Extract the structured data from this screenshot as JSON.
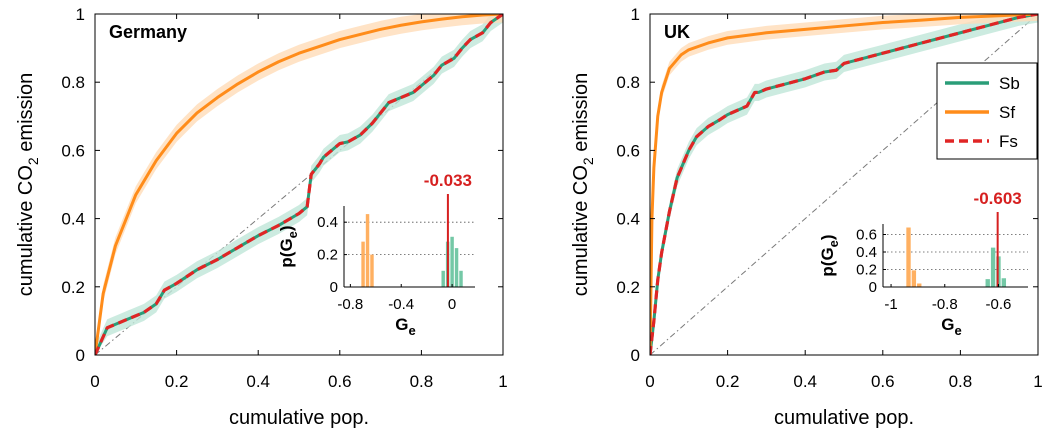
{
  "colors": {
    "Sb": "#2a9d78",
    "Sb_band": "#bfe6d8",
    "Sf": "#ff8c1a",
    "Sf_band": "#ffdcb8",
    "Fs": "#e02525",
    "diag": "#7a7a7a",
    "inset_gini": "#d62020"
  },
  "chart_data": [
    {
      "type": "line",
      "panel_label": "Germany",
      "xlabel": "cumulative pop.",
      "ylabel_main": "cumulative CO",
      "ylabel_sub": "2",
      "ylabel_tail": " emission",
      "xlim": [
        0,
        1
      ],
      "ylim": [
        0,
        1
      ],
      "xticks": [
        "0",
        "0.2",
        "0.4",
        "0.6",
        "0.8",
        "1"
      ],
      "yticks": [
        "0",
        "0.2",
        "0.4",
        "0.6",
        "0.8",
        "1"
      ],
      "grid": false,
      "series": [
        {
          "name": "Sb",
          "x": [
            0,
            0.03,
            0.06,
            0.09,
            0.12,
            0.15,
            0.17,
            0.2,
            0.25,
            0.3,
            0.35,
            0.4,
            0.45,
            0.5,
            0.52,
            0.53,
            0.55,
            0.56,
            0.58,
            0.6,
            0.62,
            0.65,
            0.68,
            0.7,
            0.72,
            0.75,
            0.78,
            0.8,
            0.83,
            0.85,
            0.88,
            0.9,
            0.92,
            0.95,
            0.97,
            1.0
          ],
          "y": [
            0,
            0.08,
            0.095,
            0.11,
            0.125,
            0.15,
            0.19,
            0.21,
            0.25,
            0.28,
            0.315,
            0.35,
            0.38,
            0.415,
            0.435,
            0.53,
            0.56,
            0.58,
            0.6,
            0.62,
            0.625,
            0.645,
            0.68,
            0.71,
            0.74,
            0.755,
            0.77,
            0.79,
            0.82,
            0.85,
            0.87,
            0.9,
            0.925,
            0.945,
            0.975,
            1.0
          ],
          "band": 0.025
        },
        {
          "name": "Sf",
          "x": [
            0,
            0.02,
            0.05,
            0.1,
            0.15,
            0.2,
            0.25,
            0.3,
            0.35,
            0.4,
            0.45,
            0.5,
            0.55,
            0.6,
            0.65,
            0.7,
            0.75,
            0.8,
            0.85,
            0.9,
            0.95,
            1.0
          ],
          "y": [
            0,
            0.18,
            0.32,
            0.47,
            0.57,
            0.65,
            0.71,
            0.755,
            0.795,
            0.83,
            0.86,
            0.885,
            0.905,
            0.925,
            0.94,
            0.955,
            0.967,
            0.977,
            0.985,
            0.992,
            0.997,
            1.0
          ],
          "band": 0.025
        },
        {
          "name": "Fs",
          "x": [
            0,
            0.03,
            0.06,
            0.09,
            0.12,
            0.15,
            0.17,
            0.2,
            0.25,
            0.3,
            0.35,
            0.4,
            0.45,
            0.5,
            0.52,
            0.53,
            0.55,
            0.56,
            0.58,
            0.6,
            0.62,
            0.65,
            0.68,
            0.7,
            0.72,
            0.75,
            0.78,
            0.8,
            0.83,
            0.85,
            0.88,
            0.9,
            0.92,
            0.95,
            0.97,
            1.0
          ],
          "y": [
            0,
            0.08,
            0.095,
            0.11,
            0.125,
            0.15,
            0.19,
            0.21,
            0.25,
            0.28,
            0.315,
            0.35,
            0.38,
            0.415,
            0.435,
            0.53,
            0.56,
            0.58,
            0.6,
            0.62,
            0.625,
            0.645,
            0.68,
            0.71,
            0.74,
            0.755,
            0.77,
            0.79,
            0.82,
            0.85,
            0.87,
            0.9,
            0.925,
            0.945,
            0.975,
            1.0
          ]
        }
      ],
      "inset": {
        "type": "bar",
        "xlabel": "G",
        "xlabel_sub": "e",
        "ylabel": "p(G",
        "ylabel_sub": "e",
        "ylabel_tail": ")",
        "xlim": [
          -0.85,
          0.18
        ],
        "ylim": [
          0,
          0.5
        ],
        "xticks": [
          -0.8,
          -0.4,
          0
        ],
        "xtick_labels": [
          "-0.8",
          "-0.4",
          "0"
        ],
        "yticks": [
          0,
          0.2,
          0.4
        ],
        "ytick_labels": [
          "0",
          "0.2",
          "0.4"
        ],
        "bar_width": 0.035,
        "bars_Sf": [
          {
            "x": -0.7,
            "p": 0.28
          },
          {
            "x": -0.665,
            "p": 0.45
          },
          {
            "x": -0.63,
            "p": 0.2
          }
        ],
        "bars_Sb": [
          {
            "x": -0.07,
            "p": 0.1
          },
          {
            "x": -0.035,
            "p": 0.28
          },
          {
            "x": 0.0,
            "p": 0.31
          },
          {
            "x": 0.035,
            "p": 0.24
          },
          {
            "x": 0.07,
            "p": 0.1
          }
        ],
        "gini_value": -0.033,
        "gini_label": "-0.033"
      }
    },
    {
      "type": "line",
      "panel_label": "UK",
      "xlabel": "cumulative pop.",
      "ylabel_main": "cumulative CO",
      "ylabel_sub": "2",
      "ylabel_tail": " emission",
      "xlim": [
        0,
        1
      ],
      "ylim": [
        0,
        1
      ],
      "xticks": [
        "0",
        "0.2",
        "0.4",
        "0.6",
        "0.8",
        "1"
      ],
      "yticks": [
        "0",
        "0.2",
        "0.4",
        "0.6",
        "0.8",
        "1"
      ],
      "grid": false,
      "legend": {
        "position": "top-right",
        "entries": [
          "Sb",
          "Sf",
          "Fs"
        ]
      },
      "series": [
        {
          "name": "Sb",
          "x": [
            0,
            0.01,
            0.02,
            0.03,
            0.05,
            0.07,
            0.1,
            0.12,
            0.15,
            0.18,
            0.2,
            0.25,
            0.27,
            0.28,
            0.3,
            0.35,
            0.4,
            0.45,
            0.48,
            0.5,
            0.55,
            0.6,
            0.65,
            0.7,
            0.75,
            0.8,
            0.85,
            0.9,
            0.95,
            1.0
          ],
          "y": [
            0,
            0.1,
            0.22,
            0.3,
            0.42,
            0.52,
            0.6,
            0.64,
            0.67,
            0.69,
            0.705,
            0.73,
            0.77,
            0.77,
            0.78,
            0.795,
            0.81,
            0.83,
            0.835,
            0.855,
            0.87,
            0.885,
            0.9,
            0.915,
            0.93,
            0.945,
            0.96,
            0.975,
            0.99,
            1.0
          ],
          "band": 0.025
        },
        {
          "name": "Sf",
          "x": [
            0,
            0.005,
            0.01,
            0.02,
            0.03,
            0.05,
            0.08,
            0.1,
            0.15,
            0.2,
            0.3,
            0.4,
            0.5,
            0.6,
            0.7,
            0.8,
            0.9,
            1.0
          ],
          "y": [
            0,
            0.4,
            0.55,
            0.7,
            0.77,
            0.84,
            0.88,
            0.895,
            0.915,
            0.93,
            0.945,
            0.955,
            0.965,
            0.975,
            0.982,
            0.99,
            0.995,
            1.0
          ],
          "band": 0.02
        },
        {
          "name": "Fs",
          "x": [
            0,
            0.01,
            0.02,
            0.03,
            0.05,
            0.07,
            0.1,
            0.12,
            0.15,
            0.18,
            0.2,
            0.25,
            0.27,
            0.28,
            0.3,
            0.35,
            0.4,
            0.45,
            0.48,
            0.5,
            0.55,
            0.6,
            0.65,
            0.7,
            0.75,
            0.8,
            0.85,
            0.9,
            0.95,
            1.0
          ],
          "y": [
            0,
            0.1,
            0.22,
            0.3,
            0.42,
            0.52,
            0.6,
            0.64,
            0.67,
            0.69,
            0.705,
            0.73,
            0.77,
            0.77,
            0.78,
            0.795,
            0.81,
            0.83,
            0.835,
            0.855,
            0.87,
            0.885,
            0.9,
            0.915,
            0.93,
            0.945,
            0.96,
            0.975,
            0.99,
            1.0
          ]
        }
      ],
      "inset": {
        "type": "bar",
        "xlabel": "G",
        "xlabel_sub": "e",
        "ylabel": "p(G",
        "ylabel_sub": "e",
        "ylabel_tail": ")",
        "xlim": [
          -1.03,
          -0.49
        ],
        "ylim": [
          0,
          0.72
        ],
        "xticks": [
          -1,
          -0.8,
          -0.6
        ],
        "xtick_labels": [
          "-1",
          "-0.8",
          "-0.6"
        ],
        "yticks": [
          0,
          0.2,
          0.4,
          0.6
        ],
        "ytick_labels": [
          "0",
          "0.2",
          "0.4",
          "0.6"
        ],
        "bar_width": 0.02,
        "bars_Sf": [
          {
            "x": -0.935,
            "p": 0.68
          },
          {
            "x": -0.915,
            "p": 0.19
          },
          {
            "x": -0.895,
            "p": 0.04
          }
        ],
        "bars_Sb": [
          {
            "x": -0.64,
            "p": 0.09
          },
          {
            "x": -0.62,
            "p": 0.45
          },
          {
            "x": -0.6,
            "p": 0.35
          },
          {
            "x": -0.58,
            "p": 0.1
          }
        ],
        "gini_value": -0.603,
        "gini_label": "-0.603"
      }
    }
  ]
}
